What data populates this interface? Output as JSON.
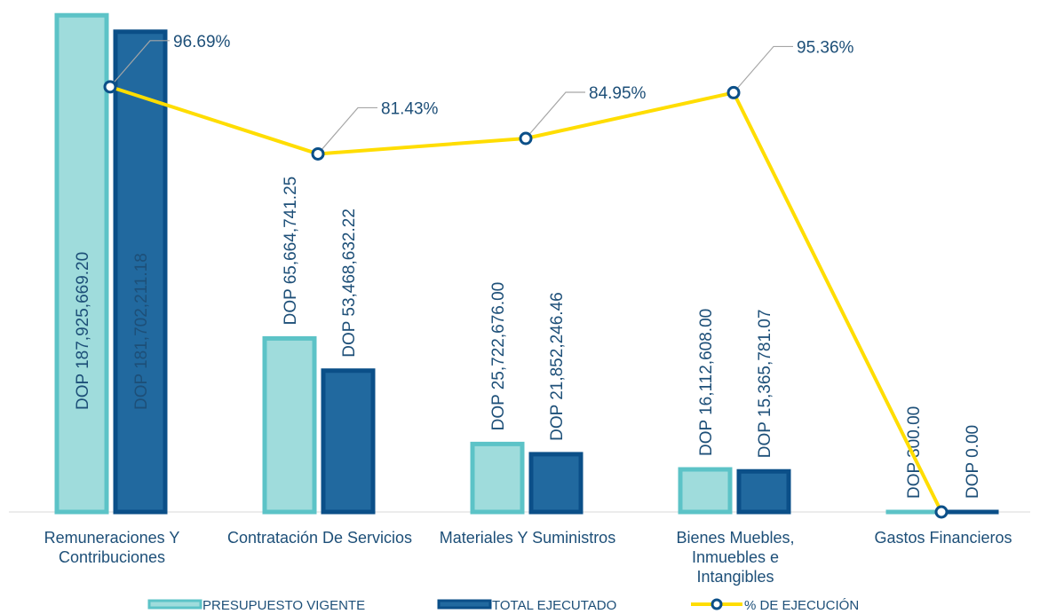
{
  "chart_data": {
    "type": "bar-line",
    "categories": [
      "Remuneraciones Y Contribuciones",
      "Contratación De Servicios",
      "Materiales Y Suministros",
      "Bienes Muebles, Inmuebles e Intangibles",
      "Gastos Financieros"
    ],
    "series": [
      {
        "name": "PRESUPUESTO VIGENTE",
        "type": "bar",
        "color": "#9fdcdc",
        "border": "#5cc3c7",
        "values": [
          187925669.2,
          65664741.25,
          25722676.0,
          16112608.0,
          300.0
        ],
        "value_labels": [
          "DOP 187,925,669.20",
          "DOP 65,664,741.25",
          "DOP 25,722,676.00",
          "DOP 16,112,608.00",
          "DOP 300.00"
        ]
      },
      {
        "name": "TOTAL EJECUTADO",
        "type": "bar",
        "color": "#21699f",
        "border": "#0b4f88",
        "values": [
          181702211.18,
          53468632.22,
          21852246.46,
          15365781.07,
          0.0
        ],
        "value_labels": [
          "DOP 181,702,211.18",
          "DOP 53,468,632.22",
          "DOP 21,852,246.46",
          "DOP 15,365,781.07",
          "DOP 0.00"
        ]
      },
      {
        "name": "% DE EJECUCIÓN",
        "type": "line",
        "axis": "y2",
        "color": "#ffdd00",
        "marker_color": "#0b4f88",
        "values": [
          96.69,
          81.43,
          84.95,
          95.36,
          0
        ],
        "value_labels": [
          "96.69%",
          "81.43%",
          "84.95%",
          "95.36%",
          null
        ]
      }
    ],
    "ylim": [
      0,
      188000000
    ],
    "y2lim": [
      0,
      113
    ],
    "legend": "bottom"
  }
}
